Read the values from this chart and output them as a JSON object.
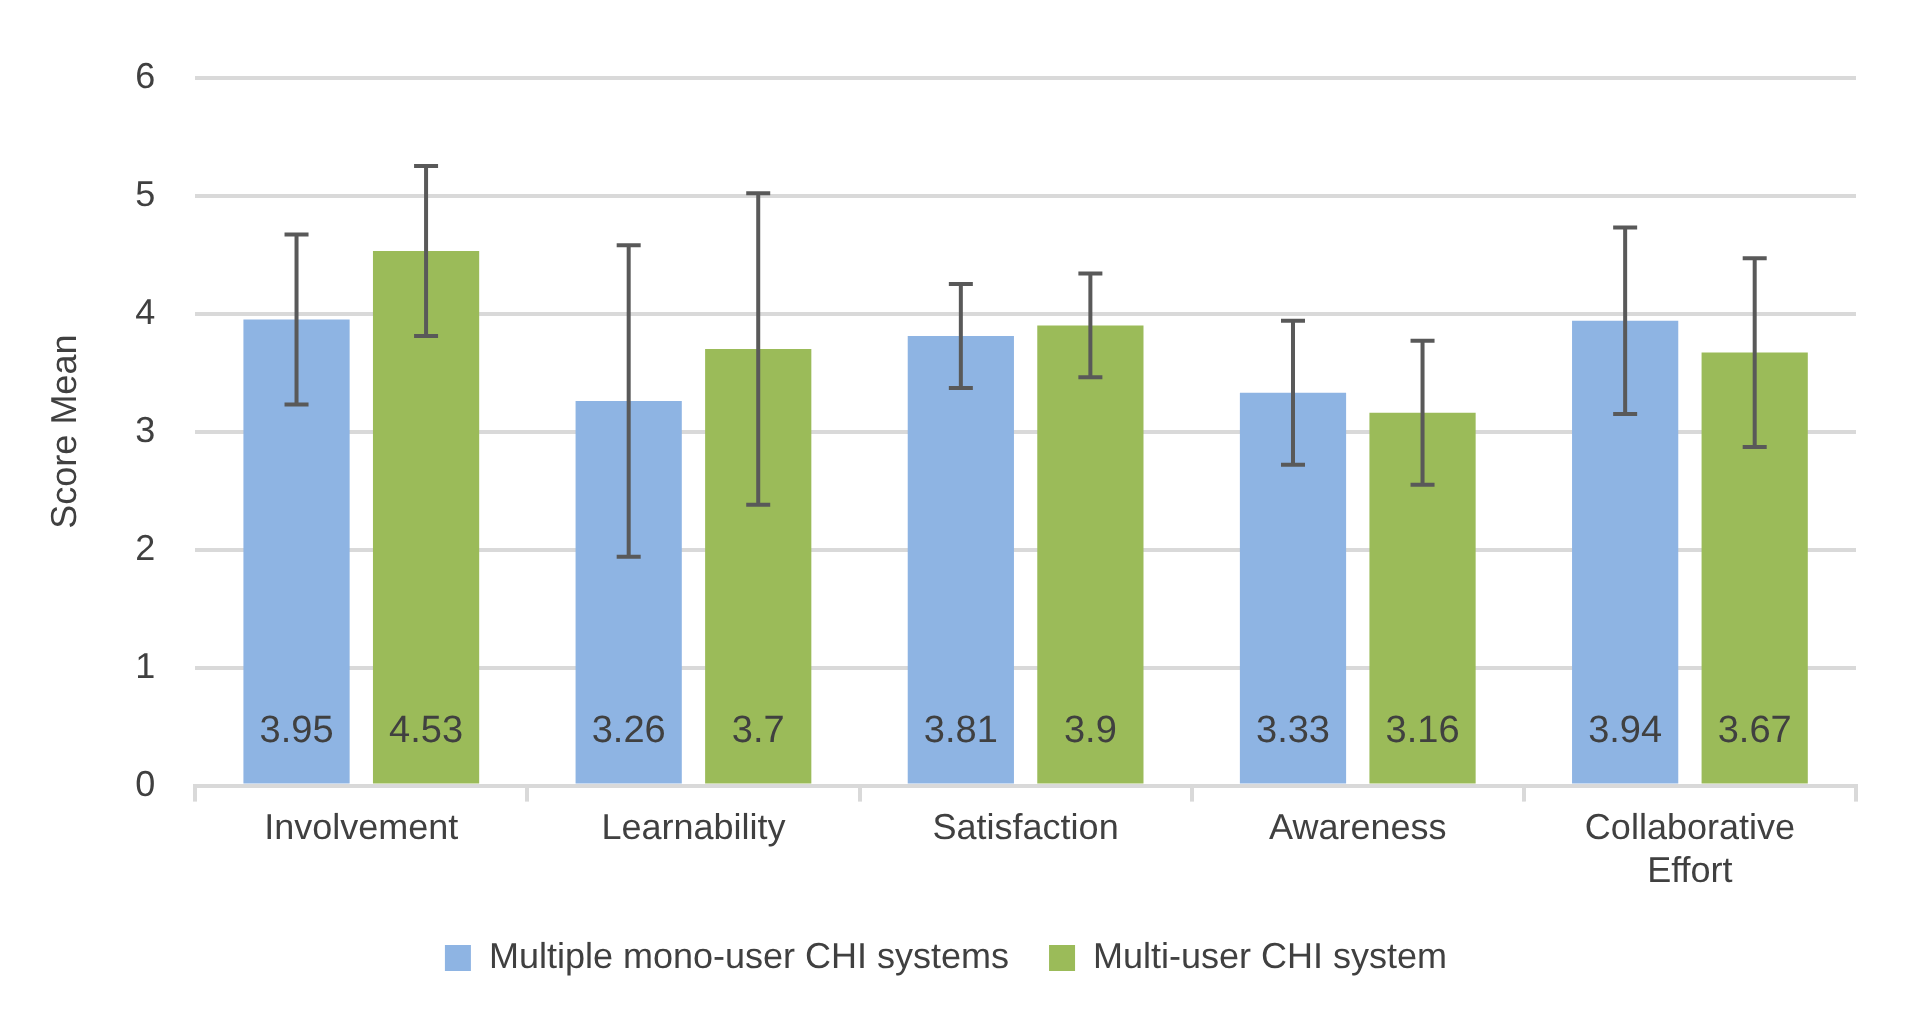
{
  "chart_data": {
    "type": "bar",
    "ylabel": "Score Mean",
    "categories": [
      "Involvement",
      "Learnability",
      "Satisfaction",
      "Awareness",
      "Collaborative Effort"
    ],
    "series": [
      {
        "name": "Multiple mono-user CHI systems",
        "color": "#8eb4e3",
        "values": [
          3.95,
          3.26,
          3.81,
          3.33,
          3.94
        ],
        "errors": [
          0.72,
          1.32,
          0.44,
          0.61,
          0.79
        ]
      },
      {
        "name": "Multi-user CHI system",
        "color": "#9bbb59",
        "values": [
          4.53,
          3.7,
          3.9,
          3.16,
          3.67
        ],
        "errors": [
          0.72,
          1.32,
          0.44,
          0.61,
          0.8
        ]
      }
    ],
    "ylim": [
      0,
      6
    ],
    "yticks": [
      0,
      1,
      2,
      3,
      4,
      5,
      6
    ],
    "grid": "y",
    "legend": "bottom",
    "data_labels": true
  }
}
